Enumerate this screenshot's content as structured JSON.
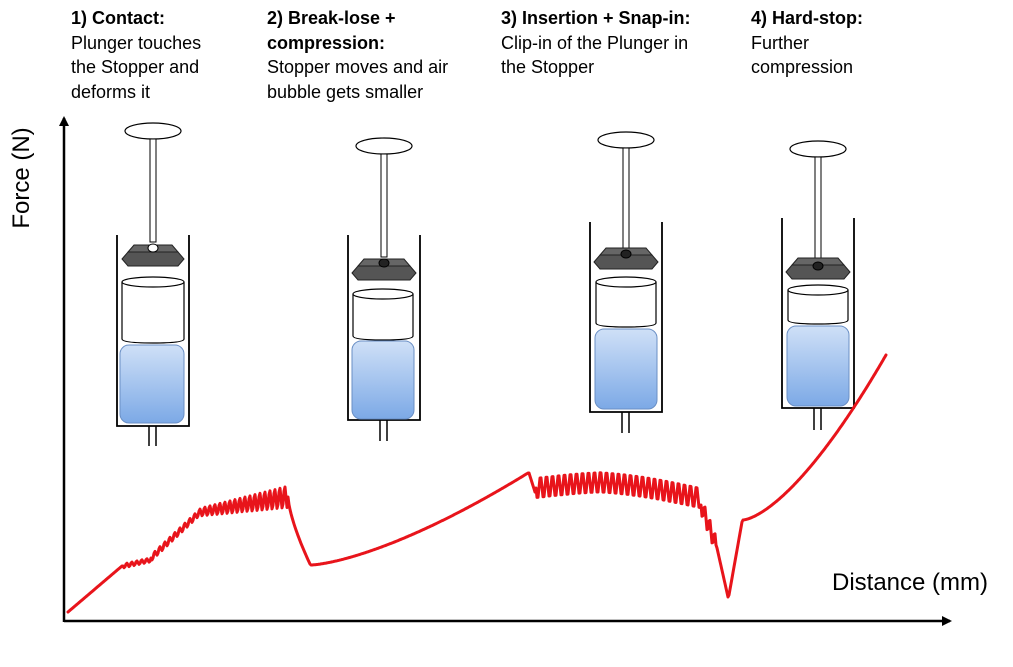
{
  "phases": [
    {
      "title": "1) Contact:",
      "line1": "Plunger touches",
      "line2": "the Stopper and",
      "line3": "deforms it"
    },
    {
      "title1": "2) Break-lose +",
      "title2": "compression:",
      "line1": "Stopper moves and air",
      "line2": "bubble gets smaller"
    },
    {
      "title": "3) Insertion + Snap-in:",
      "line1": "Clip-in of the Plunger in",
      "line2": "the Stopper"
    },
    {
      "title": "4) Hard-stop:",
      "line1": "Further",
      "line2": "compression"
    }
  ],
  "axes": {
    "y_label": "Force (N)",
    "x_label": "Distance (mm)"
  },
  "colors": {
    "curve": "#e8141b",
    "axis": "#000000",
    "liquid_top": "#c8dcf6",
    "liquid_bottom": "#7aaae8",
    "stopper": "#555555"
  }
}
